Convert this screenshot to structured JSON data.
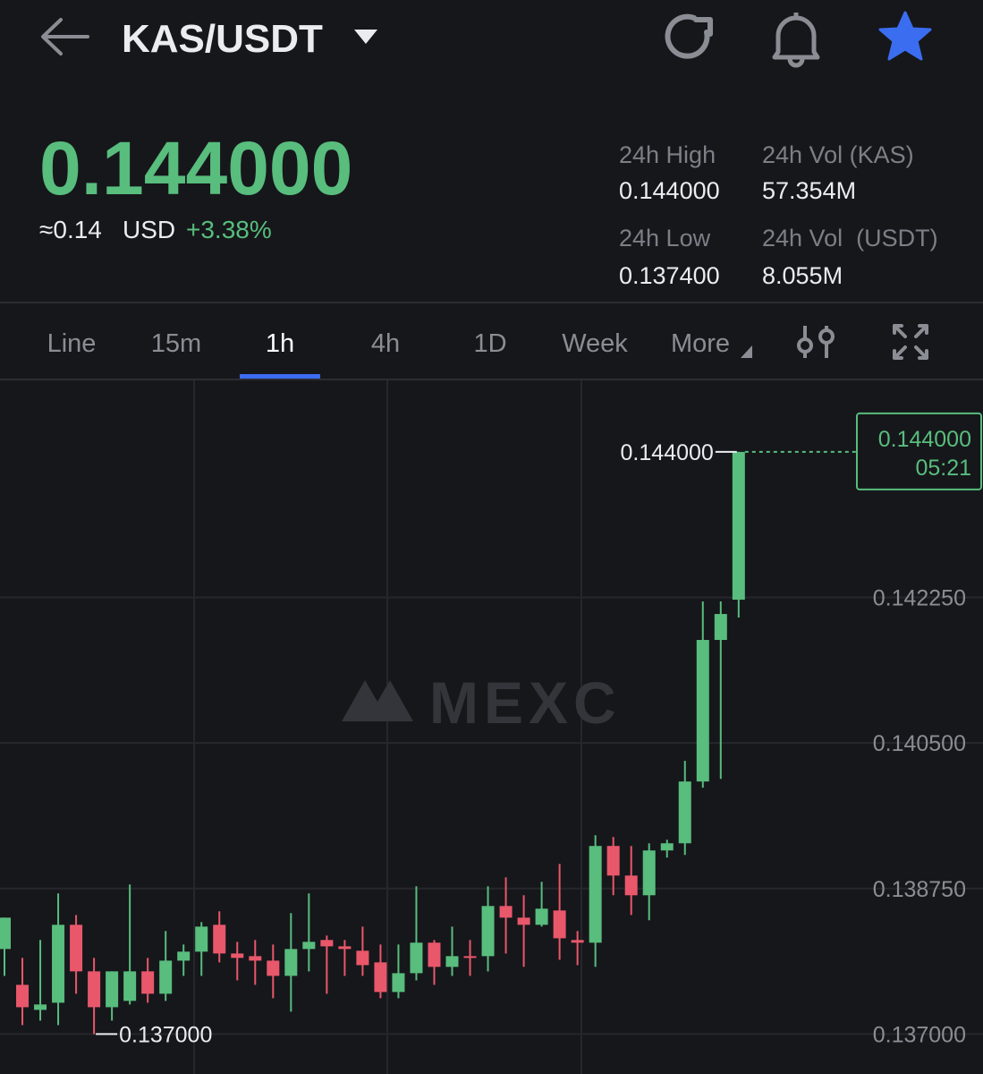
{
  "header": {
    "pair": "KAS/USDT"
  },
  "ticker": {
    "price": "0.144000",
    "approx": "≈0.14",
    "currency": "USD",
    "change": "+3.38%"
  },
  "stats": [
    {
      "label": "24h High",
      "value": "0.144000"
    },
    {
      "label": "24h Vol (KAS)",
      "value": "57.354M"
    },
    {
      "label": "24h Low",
      "value": "0.137400"
    },
    {
      "label": "24h Vol  (USDT)",
      "value": "8.055M"
    }
  ],
  "tabs": {
    "items": [
      "Line",
      "15m",
      "1h",
      "4h",
      "1D",
      "Week",
      "More"
    ],
    "active": 2
  },
  "chart_data": {
    "type": "candlestick",
    "watermark": "MEXC",
    "up_color": "#58bd7d",
    "down_color": "#e9576b",
    "open": [
      0.138023,
      0.137592,
      0.137291,
      0.137377,
      0.138314,
      0.137754,
      0.137323,
      0.137399,
      0.137754,
      0.137485,
      0.137883,
      0.137991,
      0.138314,
      0.137969,
      0.137937,
      0.137883,
      0.1377,
      0.138023,
      0.138131,
      0.138055,
      0.138002,
      0.137862,
      0.137506,
      0.137732,
      0.138099,
      0.137808,
      0.137937,
      0.137937,
      0.13854,
      0.1384,
      0.138314,
      0.138486,
      0.138131,
      0.138099,
      0.139262,
      0.138906,
      0.138669,
      0.139208,
      0.139294,
      0.140037,
      0.141739,
      0.142223
    ],
    "high": [
      0.1384,
      0.137916,
      0.138131,
      0.138691,
      0.138432,
      0.137916,
      0.137754,
      0.138799,
      0.137916,
      0.138239,
      0.138077,
      0.138346,
      0.138476,
      0.138109,
      0.138131,
      0.138077,
      0.138454,
      0.138691,
      0.138185,
      0.138131,
      0.138292,
      0.138077,
      0.138077,
      0.138777,
      0.138131,
      0.138292,
      0.138131,
      0.138777,
      0.138885,
      0.138669,
      0.138831,
      0.139046,
      0.138239,
      0.139391,
      0.139369,
      0.139262,
      0.139294,
      0.139337,
      0.140285,
      0.142202,
      0.142202,
      0.144
    ],
    "low": [
      0.1377,
      0.137108,
      0.137162,
      0.137108,
      0.137485,
      0.137,
      0.137162,
      0.137356,
      0.137377,
      0.137399,
      0.1377,
      0.1377,
      0.137862,
      0.137646,
      0.137592,
      0.137431,
      0.137269,
      0.137754,
      0.137485,
      0.1377,
      0.1377,
      0.137431,
      0.137431,
      0.137646,
      0.137592,
      0.1377,
      0.1377,
      0.137754,
      0.137969,
      0.137808,
      0.138292,
      0.137894,
      0.137829,
      0.137808,
      0.138669,
      0.138432,
      0.138368,
      0.139122,
      0.139154,
      0.139962,
      0.140069,
      0.142008
    ],
    "close": [
      0.1384,
      0.137323,
      0.137356,
      0.138314,
      0.137754,
      0.137323,
      0.137754,
      0.137754,
      0.137485,
      0.137883,
      0.137991,
      0.138292,
      0.137969,
      0.137916,
      0.137883,
      0.1377,
      0.138023,
      0.138109,
      0.138055,
      0.138023,
      0.137829,
      0.137506,
      0.137732,
      0.138099,
      0.137808,
      0.137937,
      0.137916,
      0.13854,
      0.1384,
      0.138314,
      0.138508,
      0.138152,
      0.138099,
      0.139262,
      0.138906,
      0.138669,
      0.139208,
      0.139294,
      0.140037,
      0.141739,
      0.142051,
      0.144
    ],
    "ylim": [
      0.13652,
      0.14486
    ],
    "yticks": [
      {
        "value": 0.137,
        "label": "0.137000"
      },
      {
        "value": 0.13875,
        "label": "0.138750"
      },
      {
        "value": 0.1405,
        "label": "0.140500"
      },
      {
        "value": 0.14225,
        "label": "0.142250"
      }
    ],
    "grid": true,
    "max_label": "0.144000",
    "min_label": "0.137000",
    "last_price": {
      "label": "0.144000",
      "countdown": "05:21"
    }
  }
}
